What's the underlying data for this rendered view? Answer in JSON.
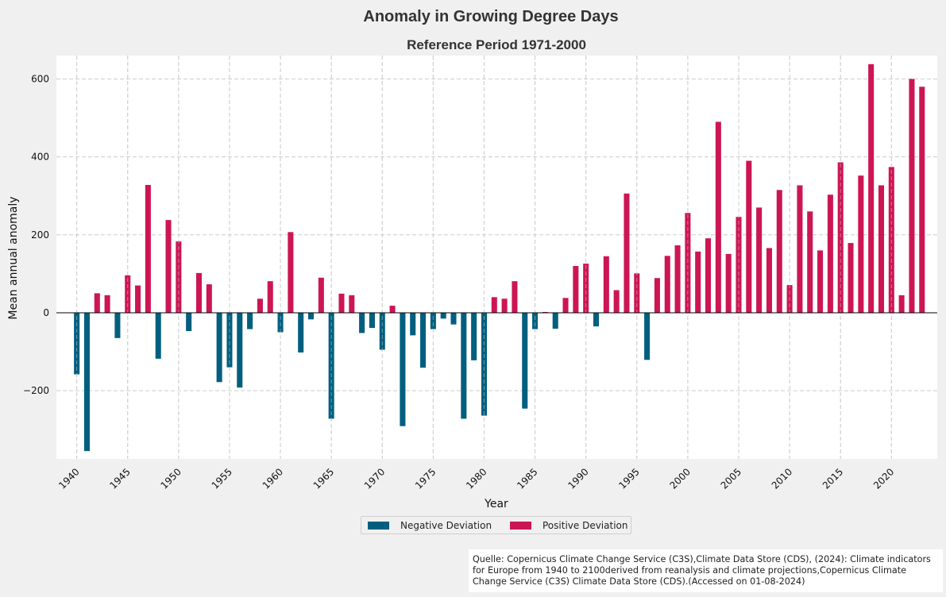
{
  "chart_data": {
    "type": "bar",
    "title": "Anomaly in Growing Degree Days",
    "subtitle": "Reference Period 1971-2000",
    "xlabel": "Year",
    "ylabel": "Mean annual anomaly",
    "ylim": [
      -375,
      660
    ],
    "xlim": [
      1938,
      2024.5
    ],
    "yticks": [
      -200,
      0,
      200,
      400,
      600
    ],
    "ytick_labels": [
      "−200",
      "0",
      "200",
      "400",
      "600"
    ],
    "xticks": [
      1940,
      1945,
      1950,
      1955,
      1960,
      1965,
      1970,
      1975,
      1980,
      1985,
      1990,
      1995,
      2000,
      2005,
      2010,
      2015,
      2020
    ],
    "grid": true,
    "legend_position": "bottom-center",
    "colors": {
      "negative": "#005f7f",
      "positive": "#cc1654",
      "background": "#f0f0f0",
      "plot_bg": "#ffffff",
      "grid": "#cccccc"
    },
    "series": [
      {
        "name": "Negative Deviation",
        "color": "#005f7f"
      },
      {
        "name": "Positive Deviation",
        "color": "#cc1654"
      }
    ],
    "years": [
      1940,
      1941,
      1942,
      1943,
      1944,
      1945,
      1946,
      1947,
      1948,
      1949,
      1950,
      1951,
      1952,
      1953,
      1954,
      1955,
      1956,
      1957,
      1958,
      1959,
      1960,
      1961,
      1962,
      1963,
      1964,
      1965,
      1966,
      1967,
      1968,
      1969,
      1970,
      1971,
      1972,
      1973,
      1974,
      1975,
      1976,
      1977,
      1978,
      1979,
      1980,
      1981,
      1982,
      1983,
      1984,
      1985,
      1986,
      1987,
      1988,
      1989,
      1990,
      1991,
      1992,
      1993,
      1994,
      1995,
      1996,
      1997,
      1998,
      1999,
      2000,
      2001,
      2002,
      2003,
      2004,
      2005,
      2006,
      2007,
      2008,
      2009,
      2010,
      2011,
      2012,
      2013,
      2014,
      2015,
      2016,
      2017,
      2018,
      2019,
      2020,
      2021,
      2022,
      2023
    ],
    "values": [
      -158,
      -355,
      50,
      45,
      -65,
      96,
      70,
      328,
      -118,
      238,
      183,
      -47,
      102,
      73,
      -178,
      -140,
      -192,
      -42,
      36,
      81,
      -50,
      207,
      -102,
      -17,
      90,
      -272,
      49,
      45,
      -52,
      -39,
      -95,
      18,
      -291,
      -58,
      -141,
      -42,
      -15,
      -30,
      -272,
      -122,
      -264,
      40,
      36,
      81,
      -246,
      -42,
      2,
      -41,
      38,
      120,
      126,
      -35,
      145,
      58,
      306,
      101,
      -121,
      89,
      146,
      173,
      256,
      157,
      191,
      490,
      151,
      246,
      390,
      270,
      166,
      315,
      71,
      327,
      260,
      160,
      303,
      386,
      179,
      352,
      638,
      327,
      374,
      45,
      600,
      580
    ]
  },
  "source_text": "Quelle: Copernicus Climate Change Service (C3S),Climate Data Store (CDS), (2024): Climate indicators for Europe from 1940 to 2100derived from reanalysis and climate projections,Copernicus Climate Change Service (C3S) Climate Data Store (CDS).(Accessed on 01-08-2024)"
}
